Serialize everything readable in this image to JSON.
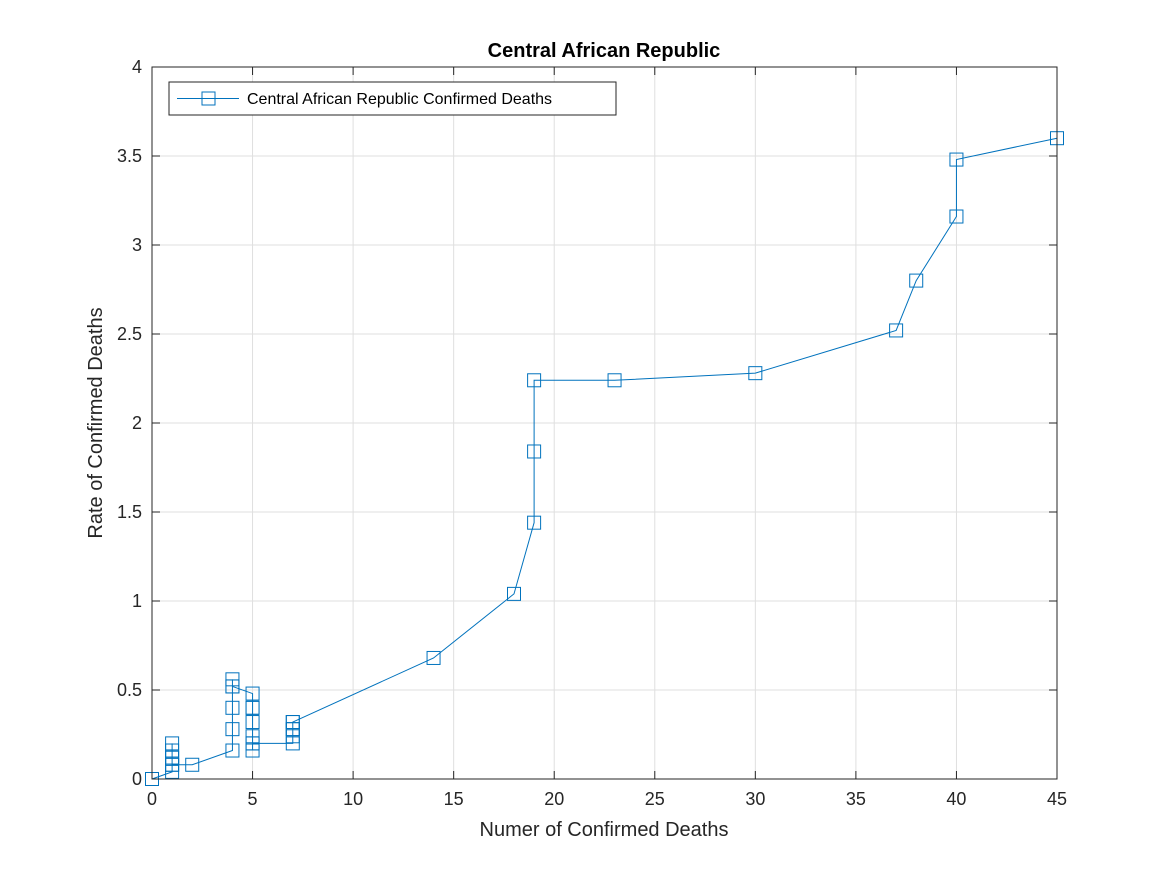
{
  "chart_data": {
    "type": "line",
    "title": "Central African Republic",
    "xlabel": "Numer of Confirmed Deaths",
    "ylabel": "Rate of Confirmed Deaths",
    "xlim": [
      0,
      45
    ],
    "ylim": [
      0,
      4
    ],
    "xticks": [
      0,
      5,
      10,
      15,
      20,
      25,
      30,
      35,
      40,
      45
    ],
    "yticks": [
      0,
      0.5,
      1,
      1.5,
      2,
      2.5,
      3,
      3.5,
      4
    ],
    "grid": true,
    "legend_position": "top-left",
    "series": [
      {
        "name": "Central African Republic Confirmed Deaths",
        "color": "#0072BD",
        "marker": "square",
        "x": [
          0,
          1,
          1,
          1,
          1,
          1,
          1,
          1,
          2,
          4,
          4,
          4,
          4,
          4,
          4,
          5,
          5,
          5,
          5,
          5,
          5,
          5,
          5,
          7,
          7,
          7,
          7,
          7,
          7,
          14,
          18,
          19,
          19,
          19,
          23,
          30,
          37,
          38,
          40,
          40,
          45
        ],
        "y": [
          0,
          0.04,
          0.08,
          0.12,
          0.16,
          0.2,
          0.12,
          0.08,
          0.08,
          0.16,
          0.28,
          0.4,
          0.52,
          0.56,
          0.52,
          0.48,
          0.4,
          0.4,
          0.32,
          0.24,
          0.2,
          0.16,
          0.2,
          0.2,
          0.24,
          0.28,
          0.32,
          0.28,
          0.32,
          0.68,
          1.04,
          1.44,
          1.84,
          2.24,
          2.24,
          2.28,
          2.52,
          2.8,
          3.16,
          3.48,
          3.6
        ]
      }
    ]
  }
}
